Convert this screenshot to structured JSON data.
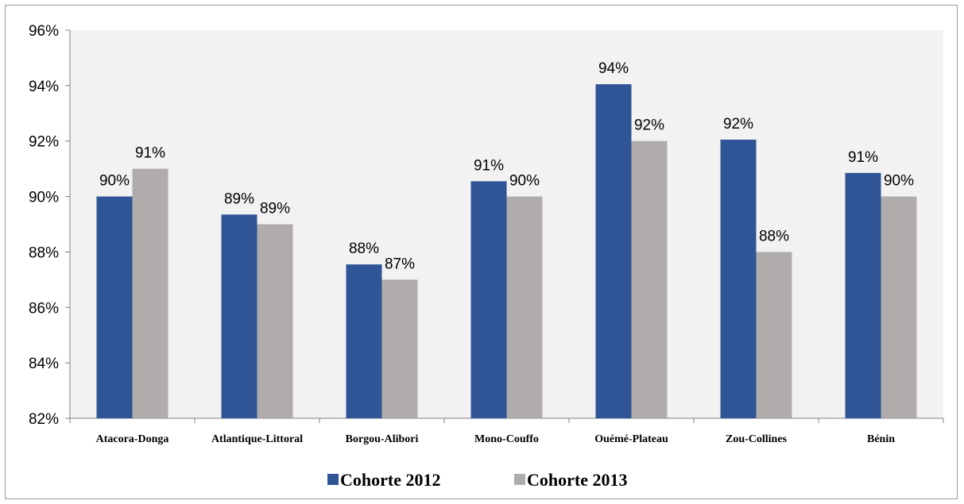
{
  "chart_data": {
    "type": "bar",
    "categories": [
      "Atacora-Donga",
      "Atlantique-Littoral",
      "Borgou-Alibori",
      "Mono-Couffo",
      "Ouémé-Plateau",
      "Zou-Collines",
      "Bénin"
    ],
    "series": [
      {
        "name": "Cohorte 2012",
        "values": [
          90.0,
          89.35,
          87.55,
          90.55,
          94.05,
          92.05,
          90.85
        ],
        "labels": [
          "90%",
          "89%",
          "88%",
          "91%",
          "94%",
          "92%",
          "91%"
        ],
        "color": "#2f5597"
      },
      {
        "name": "Cohorte 2013",
        "values": [
          91.0,
          89.0,
          87.0,
          90.0,
          92.0,
          88.0,
          90.0
        ],
        "labels": [
          "91%",
          "89%",
          "87%",
          "90%",
          "92%",
          "88%",
          "90%"
        ],
        "color": "#b1acac"
      }
    ],
    "yticks": [
      "82%",
      "84%",
      "86%",
      "88%",
      "90%",
      "92%",
      "94%",
      "96%"
    ],
    "ylim": [
      82,
      96
    ],
    "title": "",
    "xlabel": "",
    "ylabel": "",
    "grid": false,
    "legend_position": "bottom"
  }
}
